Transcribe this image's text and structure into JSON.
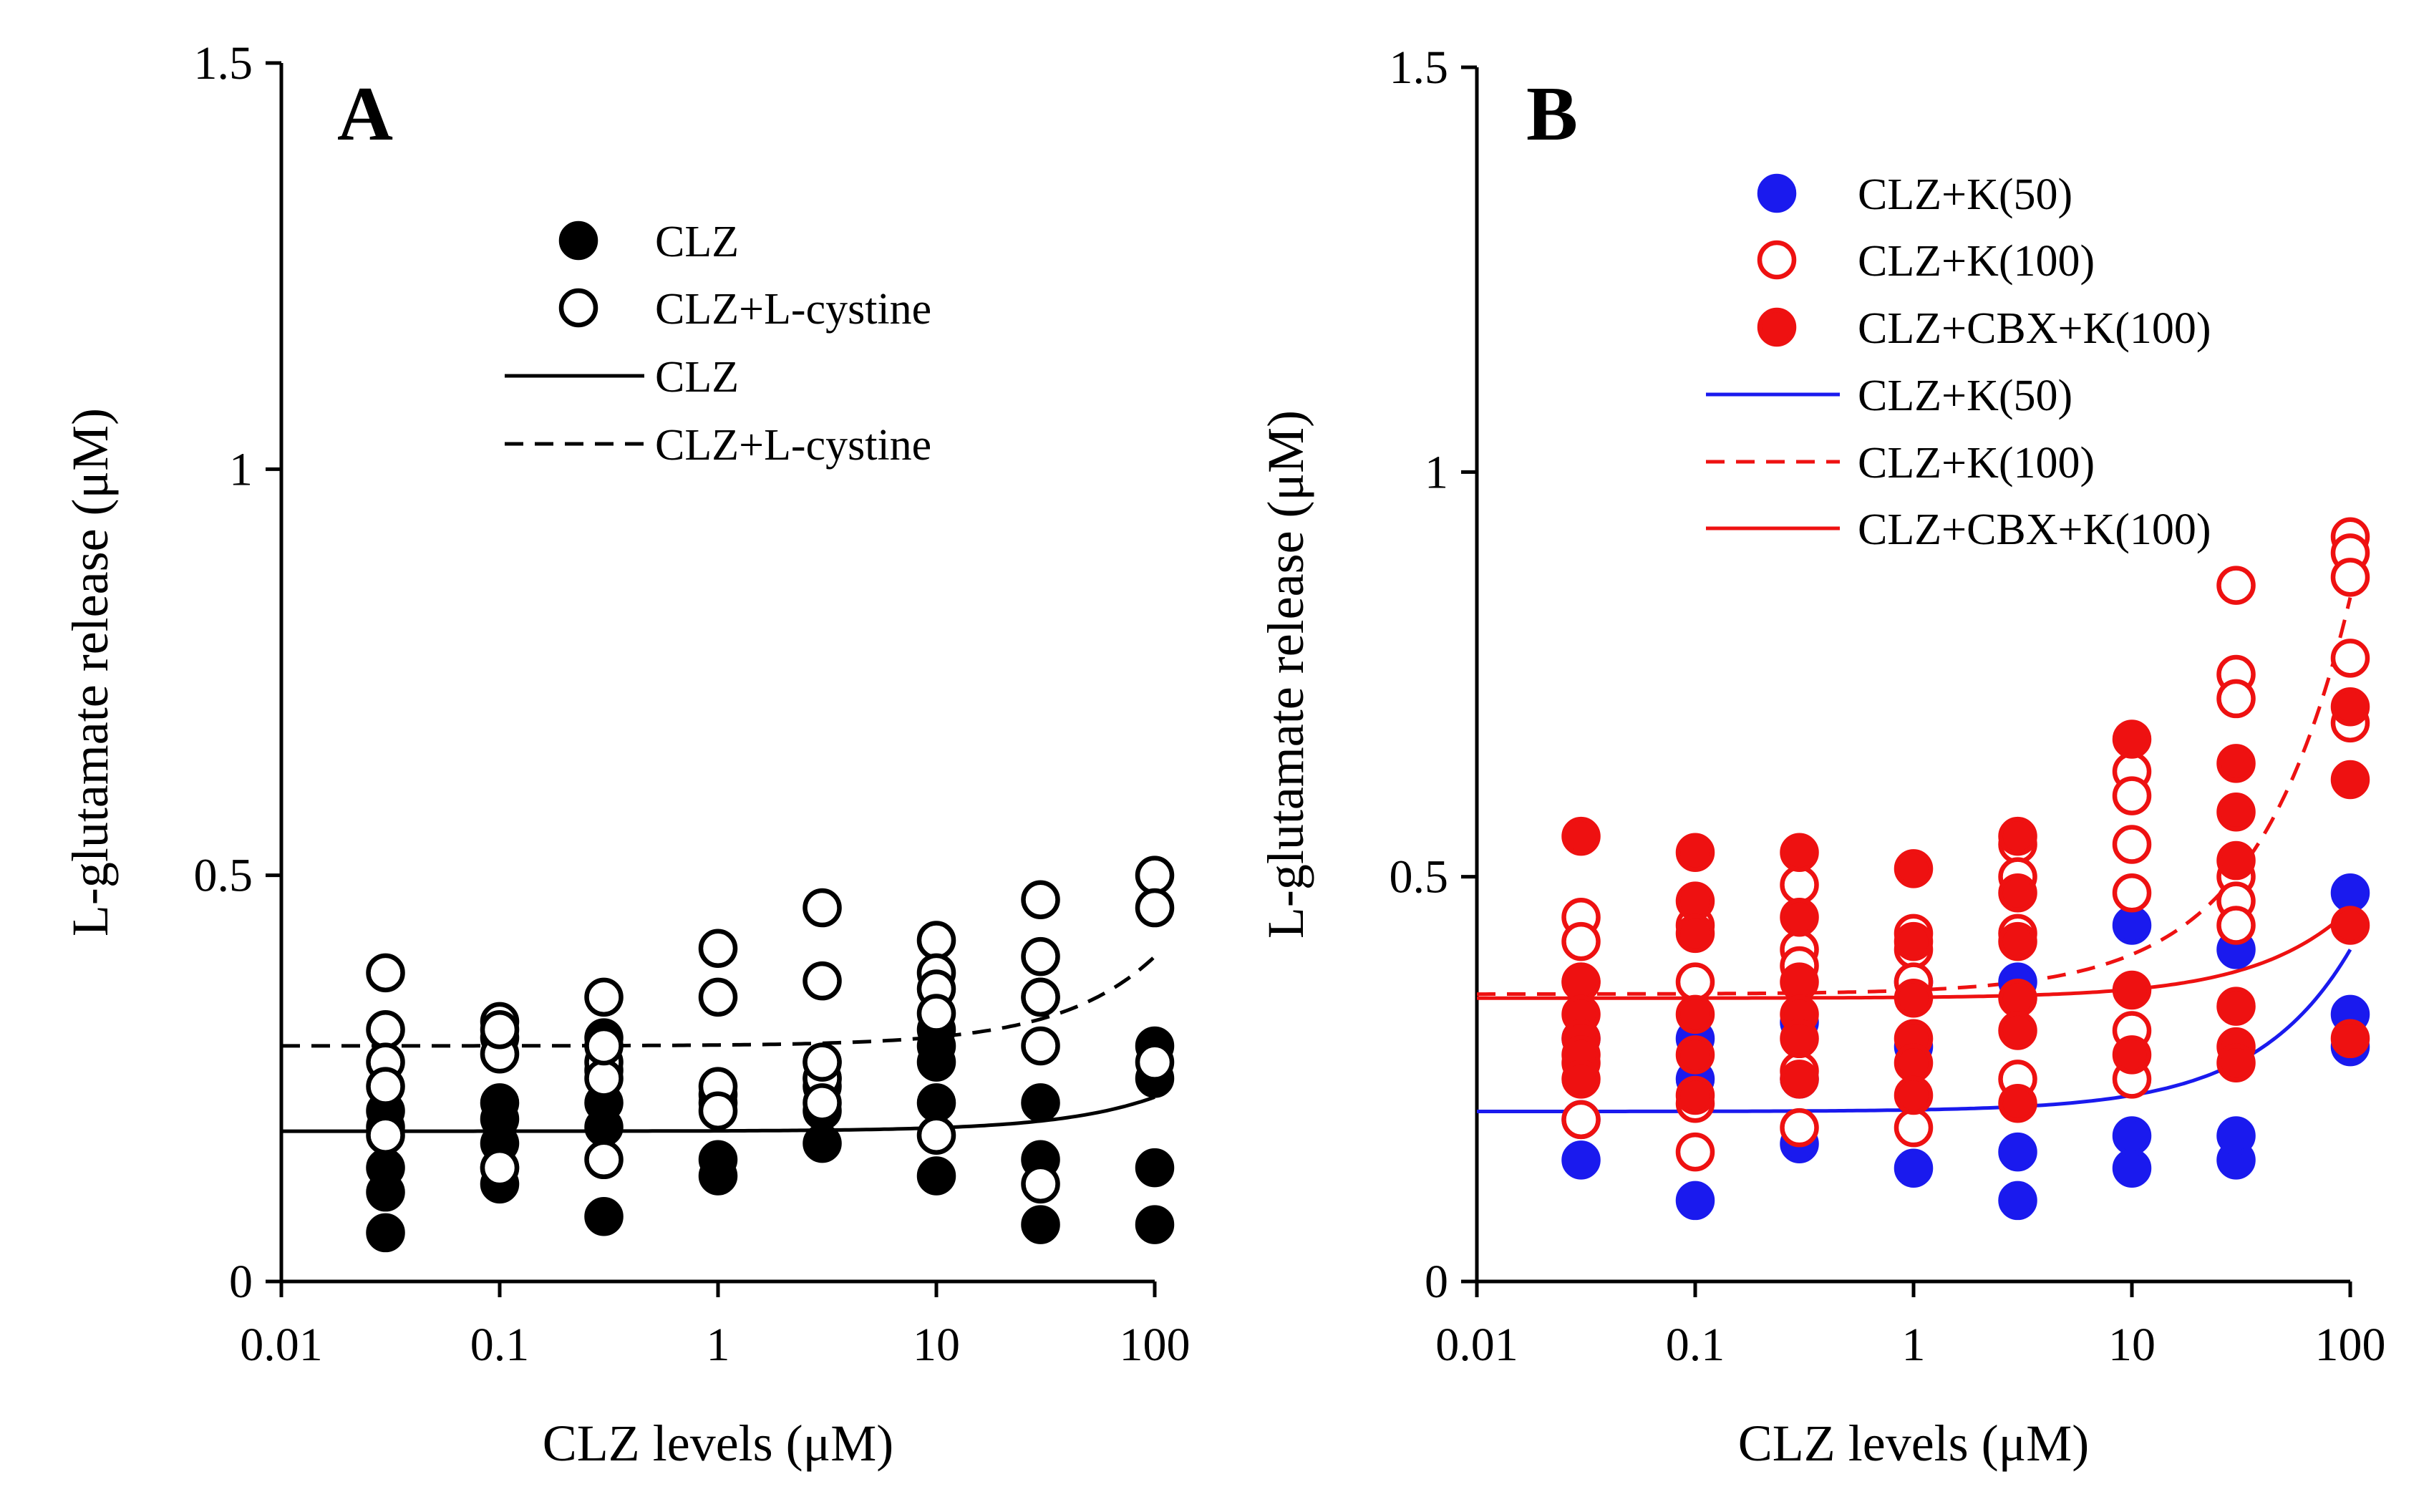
{
  "chart_data": [
    {
      "panel": "A",
      "type": "scatter",
      "xscale": "log",
      "xlabel": "CLZ levels (μM)",
      "ylabel": "L-glutamate release (μM)",
      "xlim": [
        0.01,
        100
      ],
      "ylim": [
        0,
        1.5
      ],
      "xticks": [
        "0.01",
        "0.1",
        "1",
        "10",
        "100"
      ],
      "yticks": [
        "0",
        "0.5",
        "1",
        "1.5"
      ],
      "legend_position": "top-center",
      "series": [
        {
          "name": "CLZ",
          "kind": "points",
          "marker": "filled",
          "color": "#000000",
          "x": [
            0.03,
            0.03,
            0.03,
            0.03,
            0.03,
            0.1,
            0.1,
            0.1,
            0.1,
            0.1,
            0.3,
            0.3,
            0.3,
            0.3,
            0.3,
            1,
            1,
            1,
            1,
            3,
            3,
            3,
            3,
            3,
            10,
            10,
            10,
            10,
            10,
            30,
            30,
            30,
            30,
            100,
            100,
            100,
            100
          ],
          "y": [
            0.06,
            0.11,
            0.14,
            0.19,
            0.21,
            0.12,
            0.14,
            0.17,
            0.2,
            0.22,
            0.08,
            0.19,
            0.22,
            0.26,
            0.3,
            0.13,
            0.15,
            0.22,
            0.23,
            0.17,
            0.21,
            0.24,
            0.25,
            0.27,
            0.13,
            0.22,
            0.27,
            0.29,
            0.31,
            0.07,
            0.15,
            0.22,
            0.35,
            0.07,
            0.14,
            0.25,
            0.29
          ]
        },
        {
          "name": "CLZ+L-cystine",
          "kind": "points",
          "marker": "open",
          "color": "#000000",
          "x": [
            0.03,
            0.03,
            0.03,
            0.03,
            0.03,
            0.1,
            0.1,
            0.1,
            0.1,
            0.1,
            0.3,
            0.3,
            0.3,
            0.3,
            0.3,
            1,
            1,
            1,
            1,
            3,
            3,
            3,
            3,
            3,
            10,
            10,
            10,
            10,
            10,
            30,
            30,
            30,
            30,
            30,
            100,
            100,
            100
          ],
          "y": [
            0.38,
            0.31,
            0.27,
            0.24,
            0.18,
            0.32,
            0.3,
            0.28,
            0.14,
            0.31,
            0.35,
            0.27,
            0.25,
            0.15,
            0.29,
            0.41,
            0.35,
            0.24,
            0.21,
            0.46,
            0.37,
            0.25,
            0.22,
            0.27,
            0.42,
            0.38,
            0.36,
            0.33,
            0.18,
            0.47,
            0.4,
            0.35,
            0.29,
            0.12,
            0.5,
            0.46,
            0.27
          ]
        },
        {
          "name": "CLZ",
          "kind": "line",
          "style": "solid",
          "color": "#000000",
          "base": 0.185,
          "amp": 0.042
        },
        {
          "name": "CLZ+L-cystine",
          "kind": "line",
          "style": "dashed",
          "color": "#000000",
          "base": 0.29,
          "amp": 0.11
        }
      ]
    },
    {
      "panel": "B",
      "type": "scatter",
      "xscale": "log",
      "xlabel": "CLZ levels (μM)",
      "ylabel": "L-glutamate release (μM)",
      "xlim": [
        0.01,
        100
      ],
      "ylim": [
        0,
        1.5
      ],
      "xticks": [
        "0.01",
        "0.1",
        "1",
        "10",
        "100"
      ],
      "yticks": [
        "0",
        "0.5",
        "1",
        "1.5"
      ],
      "legend_position": "top-center",
      "series": [
        {
          "name": "CLZ+K(50)",
          "kind": "points",
          "marker": "filled",
          "color": "#1a1aee",
          "x": [
            0.03,
            0.03,
            0.03,
            0.1,
            0.1,
            0.1,
            0.3,
            0.3,
            0.3,
            1,
            1,
            1,
            3,
            3,
            3,
            10,
            10,
            10,
            30,
            30,
            30,
            100,
            100,
            100
          ],
          "y": [
            0.15,
            0.2,
            0.3,
            0.1,
            0.25,
            0.3,
            0.17,
            0.25,
            0.32,
            0.14,
            0.29,
            0.37,
            0.1,
            0.16,
            0.37,
            0.14,
            0.18,
            0.44,
            0.15,
            0.18,
            0.41,
            0.29,
            0.33,
            0.48
          ]
        },
        {
          "name": "CLZ+K(100)",
          "kind": "points",
          "marker": "open",
          "color": "#ee1111",
          "x": [
            0.03,
            0.03,
            0.03,
            0.03,
            0.03,
            0.1,
            0.1,
            0.1,
            0.1,
            0.3,
            0.3,
            0.3,
            0.3,
            0.3,
            1,
            1,
            1,
            1,
            3,
            3,
            3,
            3,
            10,
            10,
            10,
            10,
            10,
            10,
            30,
            30,
            30,
            30,
            30,
            30,
            100,
            100,
            100,
            100,
            100
          ],
          "y": [
            0.45,
            0.42,
            0.37,
            0.27,
            0.2,
            0.44,
            0.37,
            0.22,
            0.16,
            0.49,
            0.41,
            0.39,
            0.26,
            0.19,
            0.43,
            0.41,
            0.37,
            0.19,
            0.54,
            0.5,
            0.43,
            0.25,
            0.63,
            0.6,
            0.54,
            0.48,
            0.31,
            0.25,
            0.86,
            0.75,
            0.72,
            0.5,
            0.47,
            0.44,
            0.92,
            0.9,
            0.87,
            0.77,
            0.69
          ]
        },
        {
          "name": "CLZ+CBX+K(100)",
          "kind": "points",
          "marker": "filled",
          "color": "#ee1111",
          "x": [
            0.03,
            0.03,
            0.03,
            0.03,
            0.03,
            0.03,
            0.1,
            0.1,
            0.1,
            0.1,
            0.1,
            0.1,
            0.3,
            0.3,
            0.3,
            0.3,
            0.3,
            0.3,
            1,
            1,
            1,
            1,
            1,
            1,
            3,
            3,
            3,
            3,
            3,
            3,
            10,
            10,
            10,
            30,
            30,
            30,
            30,
            30,
            30,
            100,
            100,
            100,
            100
          ],
          "y": [
            0.55,
            0.37,
            0.33,
            0.3,
            0.28,
            0.25,
            0.53,
            0.47,
            0.43,
            0.33,
            0.28,
            0.23,
            0.53,
            0.45,
            0.37,
            0.33,
            0.3,
            0.25,
            0.51,
            0.42,
            0.35,
            0.3,
            0.27,
            0.23,
            0.55,
            0.48,
            0.42,
            0.35,
            0.31,
            0.22,
            0.67,
            0.36,
            0.28,
            0.64,
            0.58,
            0.52,
            0.34,
            0.29,
            0.27,
            0.71,
            0.62,
            0.44,
            0.3
          ]
        },
        {
          "name": "CLZ+K(50)",
          "kind": "line",
          "style": "solid",
          "color": "#1a1aee",
          "base": 0.21,
          "amp": 0.2
        },
        {
          "name": "CLZ+K(100)",
          "kind": "line",
          "style": "dashed",
          "color": "#ee1111",
          "base": 0.355,
          "amp": 0.49
        },
        {
          "name": "CLZ+CBX+K(100)",
          "kind": "line",
          "style": "solid",
          "color": "#ee1111",
          "base": 0.35,
          "amp": 0.11
        }
      ]
    }
  ]
}
